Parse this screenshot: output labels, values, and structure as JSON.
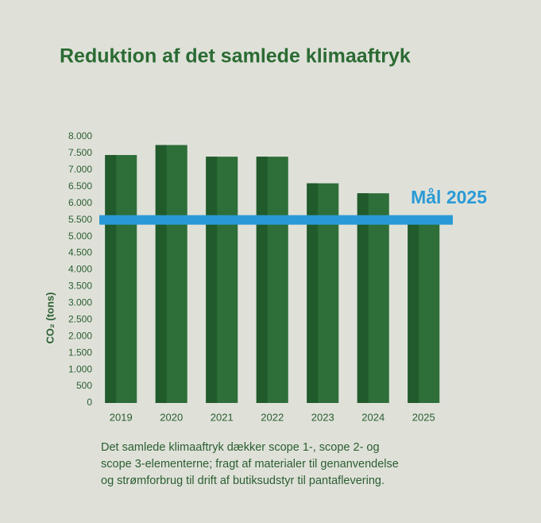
{
  "chart_data": {
    "type": "bar",
    "title": "Reduktion af det samlede klimaaftryk",
    "y_label": "CO₂ (tons)",
    "categories": [
      "2019",
      "2020",
      "2021",
      "2022",
      "2023",
      "2024",
      "2025"
    ],
    "values": [
      7450,
      7750,
      7400,
      7400,
      6600,
      6300,
      5500
    ],
    "color": "#2e6e39",
    "edge_color": "#215a2b",
    "ylim": [
      0,
      8000
    ],
    "yticks": [
      0,
      500,
      {
        "value": 1000,
        "label": "1.000"
      },
      {
        "value": 1500,
        "label": "1.500"
      },
      {
        "value": 2000,
        "label": "2.000"
      },
      {
        "value": 2500,
        "label": "2.500"
      },
      {
        "value": 3000,
        "label": "3.000"
      },
      {
        "value": 3500,
        "label": "3.500"
      },
      {
        "value": 4000,
        "label": "4.000"
      },
      {
        "value": 4500,
        "label": "4.500"
      },
      {
        "value": 5000,
        "label": "5.000"
      },
      {
        "value": 5500,
        "label": "5.500"
      },
      {
        "value": 6000,
        "label": "6.000"
      },
      {
        "value": 6500,
        "label": "6.500"
      },
      {
        "value": 7000,
        "label": "7.000"
      },
      {
        "value": 7500,
        "label": "7.500"
      },
      {
        "value": 8000,
        "label": "8.000"
      }
    ],
    "target": {
      "value": 5500,
      "label": "Mål 2025",
      "color": "#2a9ad6"
    },
    "note": [
      "Det samlede klimaaftryk dækker scope 1-, scope 2- og",
      "scope 3-elementerne; fragt af materialer til genanvendelse",
      "og strømforbrug til drift af butiksudstyr til pantaflevering."
    ]
  }
}
